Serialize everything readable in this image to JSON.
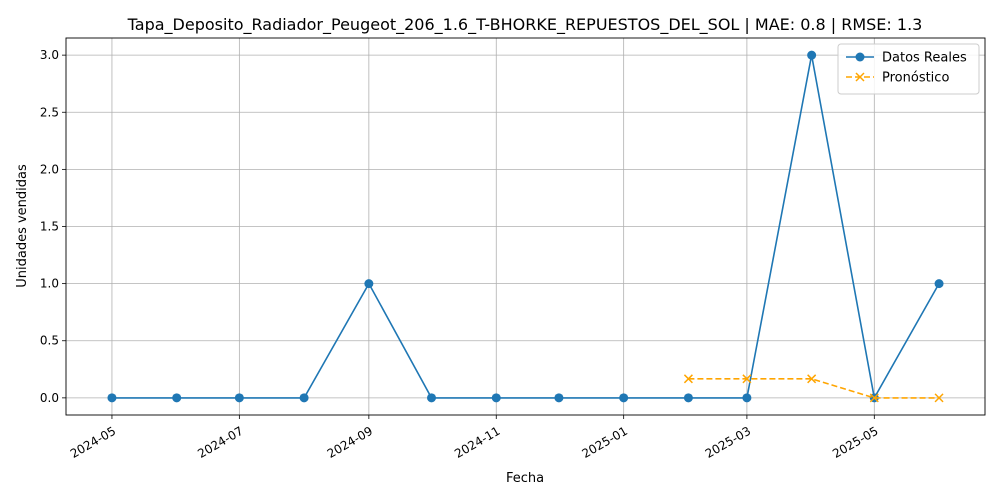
{
  "chart_data": {
    "type": "line",
    "title": "Tapa_Deposito_Radiador_Peugeot_206_1.6_T-BHORKE_REPUESTOS_DEL_SOL | MAE: 0.8 | RMSE: 1.3",
    "xlabel": "Fecha",
    "ylabel": "Unidades vendidas",
    "ylim": [
      -0.15,
      3.15
    ],
    "xlim": [
      "2024-04-09",
      "2025-06-23"
    ],
    "grid": true,
    "legend_position": "top-right",
    "x_ticks": [
      "2024-05",
      "2024-07",
      "2024-09",
      "2024-11",
      "2025-01",
      "2025-03",
      "2025-05"
    ],
    "y_ticks": [
      "0.0",
      "0.5",
      "1.0",
      "1.5",
      "2.0",
      "2.5",
      "3.0"
    ],
    "series": [
      {
        "name": "Datos Reales",
        "color": "#1f77b4",
        "style": "solid",
        "marker": "circle",
        "x": [
          "2024-05-01",
          "2024-06-01",
          "2024-07-01",
          "2024-08-01",
          "2024-09-01",
          "2024-10-01",
          "2024-11-01",
          "2024-12-01",
          "2025-01-01",
          "2025-02-01",
          "2025-03-01",
          "2025-04-01",
          "2025-05-01",
          "2025-06-01"
        ],
        "values": [
          0,
          0,
          0,
          0,
          1,
          0,
          0,
          0,
          0,
          0,
          0,
          3,
          0,
          1
        ]
      },
      {
        "name": "Pronóstico",
        "color": "#ffa500",
        "style": "dashed",
        "marker": "x",
        "x": [
          "2025-02-01",
          "2025-03-01",
          "2025-04-01",
          "2025-05-01",
          "2025-06-01"
        ],
        "values": [
          0.1667,
          0.1667,
          0.1667,
          0,
          0
        ]
      }
    ]
  }
}
